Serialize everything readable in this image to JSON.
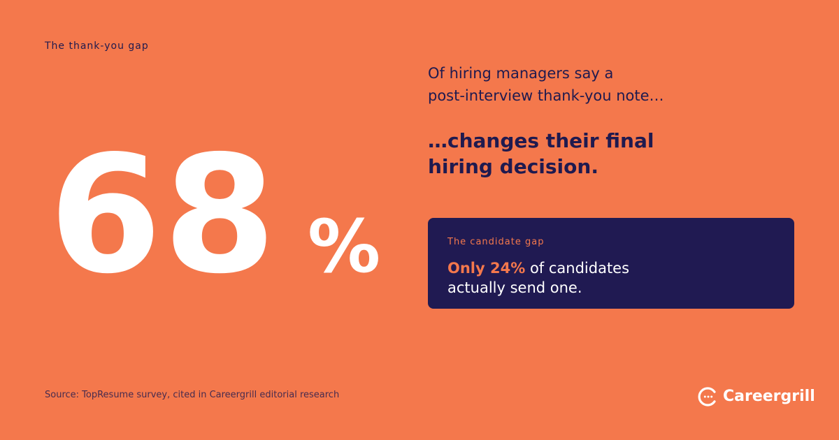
{
  "eyebrow": "The thank-you gap",
  "stat": {
    "number": "68",
    "unit": "%"
  },
  "lead": {
    "line1": "Of hiring managers say a",
    "line2": "post-interview thank-you note…"
  },
  "punch": {
    "line1": "…changes their final",
    "line2": "hiring decision."
  },
  "gap_card": {
    "label": "The candidate gap",
    "highlight": "Only 24%",
    "text_rest": " of candidates",
    "text_line2": "actually send one."
  },
  "source": "Source: TopResume survey, cited in Careergrill editorial research",
  "brand": {
    "name": "Careergrill",
    "icon": "chat-bubble-icon"
  },
  "colors": {
    "background": "#f4784c",
    "navy": "#1f1a4f",
    "card": "#201a52",
    "accent": "#f4784c",
    "white": "#ffffff"
  }
}
